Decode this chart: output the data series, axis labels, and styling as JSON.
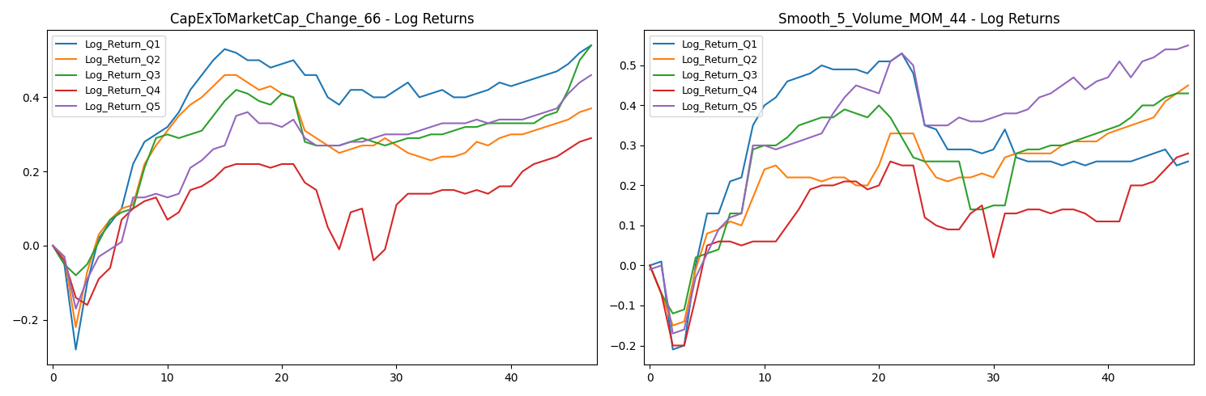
{
  "title1": "CapExToMarketCap_Change_66 - Log Returns",
  "title2": "Smooth_5_Volume_MOM_44 - Log Returns",
  "legend_labels": [
    "Log_Return_Q1",
    "Log_Return_Q2",
    "Log_Return_Q3",
    "Log_Return_Q4",
    "Log_Return_Q5"
  ],
  "colors": [
    "#1f77b4",
    "#ff7f0e",
    "#2ca02c",
    "#d62728",
    "#9467bd"
  ],
  "chart1": {
    "Q1": [
      0.0,
      -0.05,
      -0.28,
      -0.1,
      0.02,
      0.06,
      0.1,
      0.22,
      0.28,
      0.3,
      0.32,
      0.36,
      0.42,
      0.46,
      0.5,
      0.53,
      0.52,
      0.5,
      0.5,
      0.48,
      0.49,
      0.5,
      0.46,
      0.46,
      0.4,
      0.38,
      0.42,
      0.42,
      0.4,
      0.4,
      0.42,
      0.44,
      0.4,
      0.41,
      0.42,
      0.4,
      0.4,
      0.41,
      0.42,
      0.44,
      0.43,
      0.44,
      0.45,
      0.46,
      0.47,
      0.49,
      0.52,
      0.54
    ],
    "Q2": [
      0.0,
      -0.03,
      -0.22,
      -0.07,
      0.03,
      0.07,
      0.1,
      0.11,
      0.22,
      0.27,
      0.31,
      0.35,
      0.38,
      0.4,
      0.43,
      0.46,
      0.46,
      0.44,
      0.42,
      0.43,
      0.41,
      0.4,
      0.31,
      0.29,
      0.27,
      0.25,
      0.26,
      0.27,
      0.27,
      0.29,
      0.27,
      0.25,
      0.24,
      0.23,
      0.24,
      0.24,
      0.25,
      0.28,
      0.27,
      0.29,
      0.3,
      0.3,
      0.31,
      0.32,
      0.33,
      0.34,
      0.36,
      0.37
    ],
    "Q3": [
      0.0,
      -0.05,
      -0.08,
      -0.05,
      0.01,
      0.07,
      0.09,
      0.1,
      0.21,
      0.29,
      0.3,
      0.29,
      0.3,
      0.31,
      0.35,
      0.39,
      0.42,
      0.41,
      0.39,
      0.38,
      0.41,
      0.4,
      0.28,
      0.27,
      0.27,
      0.27,
      0.28,
      0.29,
      0.28,
      0.27,
      0.28,
      0.29,
      0.29,
      0.3,
      0.3,
      0.31,
      0.32,
      0.32,
      0.33,
      0.33,
      0.33,
      0.33,
      0.33,
      0.35,
      0.36,
      0.42,
      0.5,
      0.54
    ],
    "Q4": [
      0.0,
      -0.04,
      -0.14,
      -0.16,
      -0.09,
      -0.06,
      0.07,
      0.1,
      0.12,
      0.13,
      0.07,
      0.09,
      0.15,
      0.16,
      0.18,
      0.21,
      0.22,
      0.22,
      0.22,
      0.21,
      0.22,
      0.22,
      0.17,
      0.15,
      0.05,
      -0.01,
      0.09,
      0.1,
      -0.04,
      -0.01,
      0.11,
      0.14,
      0.14,
      0.14,
      0.15,
      0.15,
      0.14,
      0.15,
      0.14,
      0.16,
      0.16,
      0.2,
      0.22,
      0.23,
      0.24,
      0.26,
      0.28,
      0.29
    ],
    "Q5": [
      0.0,
      -0.03,
      -0.17,
      -0.09,
      -0.03,
      -0.01,
      0.01,
      0.13,
      0.13,
      0.14,
      0.13,
      0.14,
      0.21,
      0.23,
      0.26,
      0.27,
      0.35,
      0.36,
      0.33,
      0.33,
      0.32,
      0.34,
      0.29,
      0.27,
      0.27,
      0.27,
      0.28,
      0.28,
      0.29,
      0.3,
      0.3,
      0.3,
      0.31,
      0.32,
      0.33,
      0.33,
      0.33,
      0.34,
      0.33,
      0.34,
      0.34,
      0.34,
      0.35,
      0.36,
      0.37,
      0.41,
      0.44,
      0.46
    ]
  },
  "chart2": {
    "Q1": [
      0.0,
      0.01,
      -0.21,
      -0.2,
      0.0,
      0.13,
      0.13,
      0.21,
      0.22,
      0.35,
      0.4,
      0.42,
      0.46,
      0.47,
      0.48,
      0.5,
      0.49,
      0.49,
      0.49,
      0.48,
      0.51,
      0.51,
      0.53,
      0.48,
      0.35,
      0.34,
      0.29,
      0.29,
      0.29,
      0.28,
      0.29,
      0.34,
      0.27,
      0.26,
      0.26,
      0.26,
      0.25,
      0.26,
      0.25,
      0.26,
      0.26,
      0.26,
      0.26,
      0.27,
      0.28,
      0.29,
      0.25,
      0.26
    ],
    "Q2": [
      0.0,
      -0.07,
      -0.15,
      -0.14,
      -0.01,
      0.08,
      0.09,
      0.11,
      0.1,
      0.17,
      0.24,
      0.25,
      0.22,
      0.22,
      0.22,
      0.21,
      0.22,
      0.22,
      0.2,
      0.2,
      0.25,
      0.33,
      0.33,
      0.33,
      0.26,
      0.22,
      0.21,
      0.22,
      0.22,
      0.23,
      0.22,
      0.27,
      0.28,
      0.28,
      0.28,
      0.28,
      0.3,
      0.31,
      0.31,
      0.31,
      0.33,
      0.34,
      0.35,
      0.36,
      0.37,
      0.41,
      0.43,
      0.45
    ],
    "Q3": [
      0.0,
      -0.07,
      -0.12,
      -0.11,
      0.02,
      0.03,
      0.04,
      0.13,
      0.13,
      0.29,
      0.3,
      0.3,
      0.32,
      0.35,
      0.36,
      0.37,
      0.37,
      0.39,
      0.38,
      0.37,
      0.4,
      0.37,
      0.32,
      0.27,
      0.26,
      0.26,
      0.26,
      0.26,
      0.14,
      0.14,
      0.15,
      0.15,
      0.28,
      0.29,
      0.29,
      0.3,
      0.3,
      0.31,
      0.32,
      0.33,
      0.34,
      0.35,
      0.37,
      0.4,
      0.4,
      0.42,
      0.43,
      0.43
    ],
    "Q4": [
      0.0,
      -0.07,
      -0.2,
      -0.2,
      -0.08,
      0.05,
      0.06,
      0.06,
      0.05,
      0.06,
      0.06,
      0.06,
      0.1,
      0.14,
      0.19,
      0.2,
      0.2,
      0.21,
      0.21,
      0.19,
      0.2,
      0.26,
      0.25,
      0.25,
      0.12,
      0.1,
      0.09,
      0.09,
      0.13,
      0.15,
      0.02,
      0.13,
      0.13,
      0.14,
      0.14,
      0.13,
      0.14,
      0.14,
      0.13,
      0.11,
      0.11,
      0.11,
      0.2,
      0.2,
      0.21,
      0.24,
      0.27,
      0.28
    ],
    "Q5": [
      -0.01,
      0.0,
      -0.17,
      -0.16,
      -0.03,
      0.03,
      0.09,
      0.12,
      0.13,
      0.3,
      0.3,
      0.29,
      0.3,
      0.31,
      0.32,
      0.33,
      0.38,
      0.42,
      0.45,
      0.44,
      0.43,
      0.51,
      0.53,
      0.5,
      0.35,
      0.35,
      0.35,
      0.37,
      0.36,
      0.36,
      0.37,
      0.38,
      0.38,
      0.39,
      0.42,
      0.43,
      0.45,
      0.47,
      0.44,
      0.46,
      0.47,
      0.51,
      0.47,
      0.51,
      0.52,
      0.54,
      0.54,
      0.55
    ]
  }
}
